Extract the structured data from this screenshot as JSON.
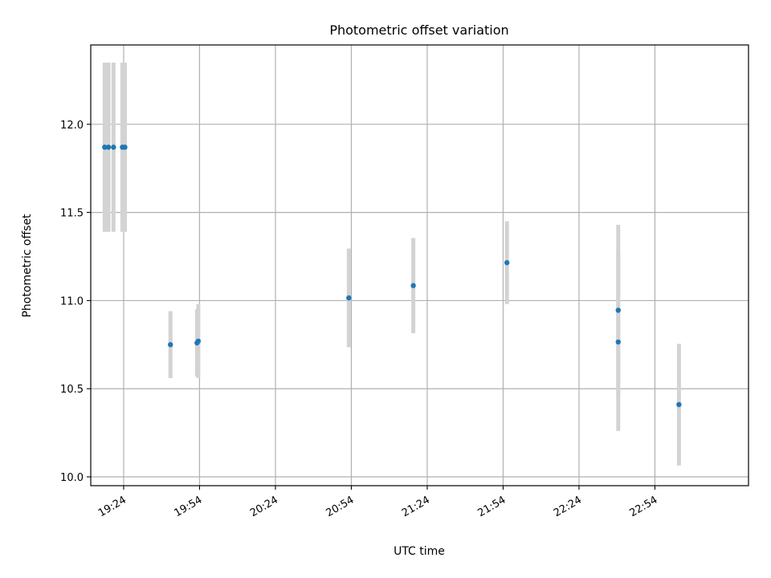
{
  "chart_data": {
    "type": "scatter",
    "title": "Photometric offset variation",
    "xlabel": "UTC time",
    "ylabel": "Photometric offset",
    "x_unit": "UTC time (HH:MM)",
    "xlim": [
      "19:11",
      "23:31"
    ],
    "ylim": [
      9.95,
      12.45
    ],
    "x_ticks": [
      "19:24",
      "19:54",
      "20:24",
      "20:54",
      "21:24",
      "21:54",
      "22:24",
      "22:54"
    ],
    "y_ticks": [
      10.0,
      10.5,
      11.0,
      11.5,
      12.0
    ],
    "y_tick_labels": [
      "10.0",
      "10.5",
      "11.0",
      "11.5",
      "12.0"
    ],
    "grid": true,
    "legend": "none",
    "colors": {
      "point": "#1f77b4",
      "errorbar": "#d3d3d3"
    },
    "points": [
      {
        "x": "19:16:30",
        "y": 11.87,
        "err": 0.48
      },
      {
        "x": "19:18:00",
        "y": 11.87,
        "err": 0.48
      },
      {
        "x": "19:20:00",
        "y": 11.87,
        "err": 0.48
      },
      {
        "x": "19:23:30",
        "y": 11.87,
        "err": 0.48
      },
      {
        "x": "19:24:30",
        "y": 11.87,
        "err": 0.48
      },
      {
        "x": "19:42:30",
        "y": 10.75,
        "err": 0.19
      },
      {
        "x": "19:53:00",
        "y": 10.76,
        "err": 0.19
      },
      {
        "x": "19:53:30",
        "y": 10.77,
        "err": 0.21
      },
      {
        "x": "20:53:00",
        "y": 11.015,
        "err": 0.28
      },
      {
        "x": "21:18:30",
        "y": 11.085,
        "err": 0.27
      },
      {
        "x": "21:55:30",
        "y": 11.215,
        "err": 0.235
      },
      {
        "x": "22:39:30",
        "y": 10.945,
        "err": 0.485
      },
      {
        "x": "22:39:30",
        "y": 10.765,
        "err": 0.505
      },
      {
        "x": "23:03:30",
        "y": 10.41,
        "err": 0.345
      }
    ]
  }
}
